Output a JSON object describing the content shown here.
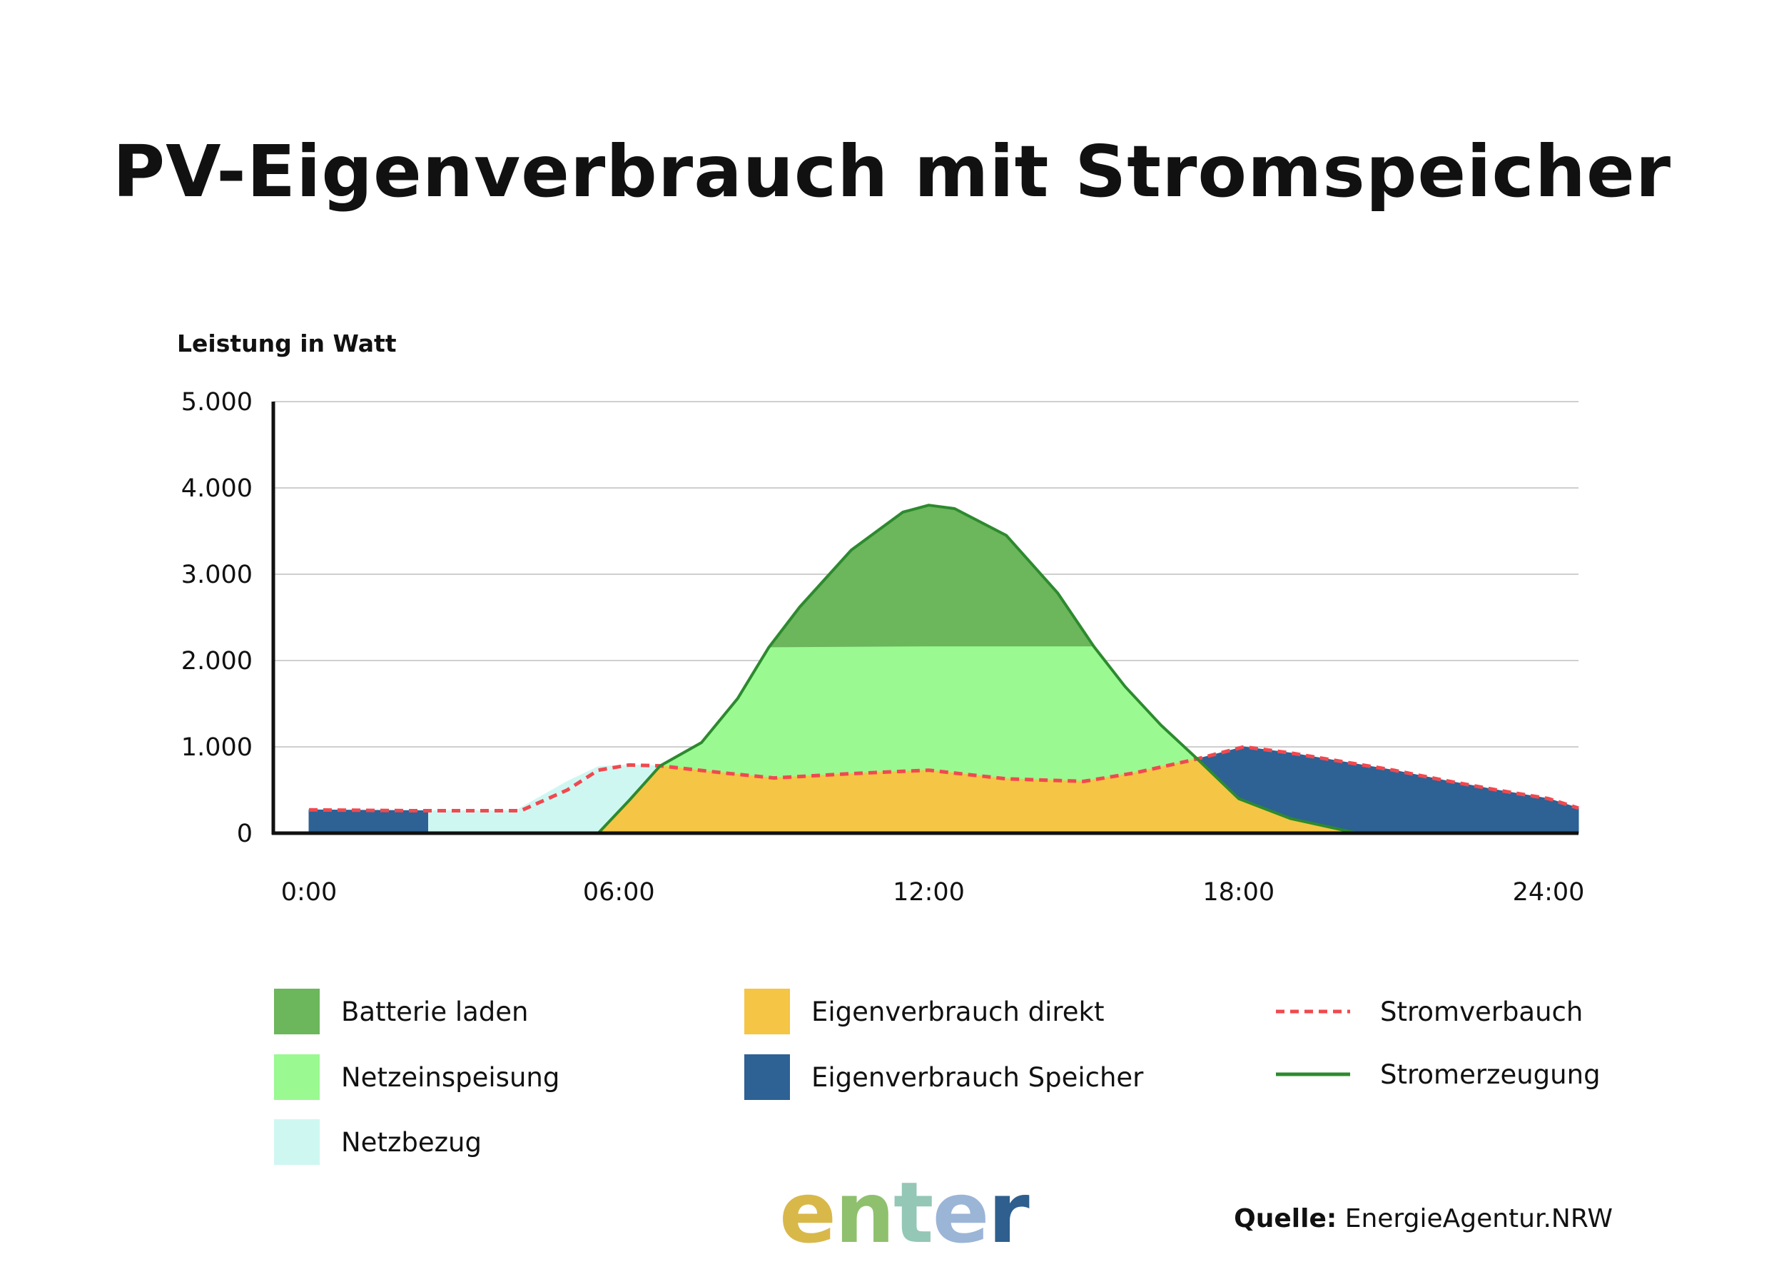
{
  "title": "PV-Eigenverbrauch mit Stromspeicher",
  "chart_data": {
    "type": "area",
    "ylabel": "Leistung in Watt",
    "xlabel": "",
    "ylim": [
      0,
      5000
    ],
    "xlim": [
      0,
      24
    ],
    "y_ticks": [
      "0",
      "1.000",
      "2.000",
      "3.000",
      "4.000",
      "5.000"
    ],
    "y_tick_values": [
      0,
      1000,
      2000,
      3000,
      4000,
      5000
    ],
    "x_ticks": [
      "0:00",
      "06:00",
      "12:00",
      "18:00",
      "24:00"
    ],
    "x_tick_values": [
      0,
      6,
      12,
      18,
      24
    ],
    "grid": true,
    "legend_position": "bottom",
    "series": [
      {
        "name": "Batterie laden",
        "kind": "area",
        "color": "#6cb65c",
        "lower": [
          [
            8.9,
            2150
          ],
          [
            12,
            2160
          ],
          [
            15.2,
            2160
          ]
        ],
        "upper": [
          [
            8.9,
            2150
          ],
          [
            9.5,
            2620
          ],
          [
            10.5,
            3280
          ],
          [
            11.5,
            3720
          ],
          [
            12,
            3800
          ],
          [
            12.5,
            3760
          ],
          [
            13.5,
            3450
          ],
          [
            14.5,
            2780
          ],
          [
            15.2,
            2160
          ]
        ]
      },
      {
        "name": "Netzeinspeisung",
        "kind": "area",
        "color": "#9af991",
        "lower": [
          [
            6.8,
            780
          ],
          [
            8,
            700
          ],
          [
            9,
            640
          ],
          [
            10.5,
            690
          ],
          [
            12,
            730
          ],
          [
            13.5,
            630
          ],
          [
            15,
            600
          ],
          [
            16,
            700
          ],
          [
            17.2,
            860
          ]
        ],
        "upper": [
          [
            6.8,
            780
          ],
          [
            7.6,
            1050
          ],
          [
            8.3,
            1560
          ],
          [
            8.9,
            2150
          ],
          [
            12,
            2160
          ],
          [
            15.2,
            2160
          ],
          [
            15.8,
            1700
          ],
          [
            16.5,
            1250
          ],
          [
            17.2,
            860
          ]
        ]
      },
      {
        "name": "Netzbezug",
        "kind": "area",
        "color": "#cff7f2",
        "lower": [
          [
            2.3,
            0
          ],
          [
            5.6,
            0
          ],
          [
            6.2,
            380
          ],
          [
            6.8,
            780
          ]
        ],
        "upper": [
          [
            2.3,
            0
          ],
          [
            2.3,
            260
          ],
          [
            4,
            260
          ],
          [
            5,
            600
          ],
          [
            5.6,
            770
          ],
          [
            6.2,
            790
          ],
          [
            6.8,
            780
          ]
        ]
      },
      {
        "name": "Eigenverbrauch direkt",
        "kind": "area",
        "color": "#f5c545",
        "lower": [
          [
            5.6,
            0
          ],
          [
            20.3,
            0
          ]
        ],
        "upper": [
          [
            5.6,
            0
          ],
          [
            6.2,
            380
          ],
          [
            6.8,
            780
          ],
          [
            8,
            700
          ],
          [
            9,
            640
          ],
          [
            10.5,
            690
          ],
          [
            12,
            730
          ],
          [
            13.5,
            630
          ],
          [
            15,
            600
          ],
          [
            16,
            700
          ],
          [
            17.2,
            860
          ],
          [
            18,
            400
          ],
          [
            19,
            170
          ],
          [
            20.3,
            0
          ]
        ]
      },
      {
        "name": "Eigenverbrauch Speicher",
        "kind": "area",
        "color": "#2e6194",
        "segments": [
          {
            "lower": [
              [
                0,
                0
              ],
              [
                2.3,
                0
              ]
            ],
            "upper": [
              [
                0,
                270
              ],
              [
                2.3,
                260
              ]
            ]
          },
          {
            "lower": [
              [
                17.2,
                860
              ],
              [
                18,
                400
              ],
              [
                19,
                170
              ],
              [
                20.3,
                0
              ],
              [
                25.3,
                0
              ]
            ],
            "upper": [
              [
                17.2,
                860
              ],
              [
                18.1,
                1000
              ],
              [
                19,
                930
              ],
              [
                20,
                830
              ],
              [
                21,
                730
              ],
              [
                22,
                610
              ],
              [
                23,
                500
              ],
              [
                24,
                400
              ],
              [
                25.3,
                290
              ]
            ]
          }
        ]
      },
      {
        "name": "Stromverbauch",
        "kind": "line",
        "style": "dashed",
        "color": "#f0494f",
        "points": [
          [
            0,
            270
          ],
          [
            1,
            265
          ],
          [
            2,
            260
          ],
          [
            3,
            260
          ],
          [
            4.1,
            260
          ],
          [
            5,
            500
          ],
          [
            5.6,
            730
          ],
          [
            6.2,
            790
          ],
          [
            6.8,
            780
          ],
          [
            8,
            700
          ],
          [
            9,
            640
          ],
          [
            10.5,
            690
          ],
          [
            12,
            730
          ],
          [
            13.5,
            630
          ],
          [
            15,
            600
          ],
          [
            16,
            700
          ],
          [
            17.2,
            860
          ],
          [
            18.1,
            1000
          ],
          [
            19,
            930
          ],
          [
            20,
            830
          ],
          [
            21,
            730
          ],
          [
            22,
            610
          ],
          [
            23,
            500
          ],
          [
            24,
            400
          ],
          [
            25.3,
            290
          ]
        ]
      },
      {
        "name": "Stromerzeugung",
        "kind": "line",
        "style": "solid",
        "color": "#2d8a2e",
        "points": [
          [
            5.6,
            0
          ],
          [
            6.2,
            380
          ],
          [
            6.8,
            780
          ],
          [
            7.6,
            1050
          ],
          [
            8.3,
            1560
          ],
          [
            8.9,
            2150
          ],
          [
            9.5,
            2620
          ],
          [
            10.5,
            3280
          ],
          [
            11.5,
            3720
          ],
          [
            12,
            3800
          ],
          [
            12.5,
            3760
          ],
          [
            13.5,
            3450
          ],
          [
            14.5,
            2780
          ],
          [
            15.2,
            2160
          ],
          [
            15.8,
            1700
          ],
          [
            16.5,
            1250
          ],
          [
            17.2,
            860
          ],
          [
            18,
            400
          ],
          [
            19,
            170
          ],
          [
            20.3,
            0
          ]
        ]
      }
    ]
  },
  "legend": {
    "batterie": "Batterie laden",
    "netzeinspeisung": "Netzeinspeisung",
    "netzbezug": "Netzbezug",
    "eigen_direkt": "Eigenverbrauch direkt",
    "eigen_speicher": "Eigenverbrauch Speicher",
    "stromverbrauch": "Stromverbauch",
    "stromerzeugung": "Stromerzeugung"
  },
  "colors": {
    "batterie": "#6cb65c",
    "netzeinspeisung": "#9af991",
    "netzbezug": "#cff7f2",
    "eigen_direkt": "#f5c545",
    "eigen_speicher": "#2e6194",
    "stromverbrauch": "#f0494f",
    "stromerzeugung": "#2d8a2e"
  },
  "logo": {
    "text": "enter",
    "letters": [
      "e",
      "n",
      "t",
      "e",
      "r"
    ],
    "letter_colors": [
      "#d9b84a",
      "#8fc06d",
      "#94c7b5",
      "#9bb5d7",
      "#2e5f8e"
    ]
  },
  "source": {
    "label": "Quelle:",
    "text": "EnergieAgentur.NRW"
  }
}
